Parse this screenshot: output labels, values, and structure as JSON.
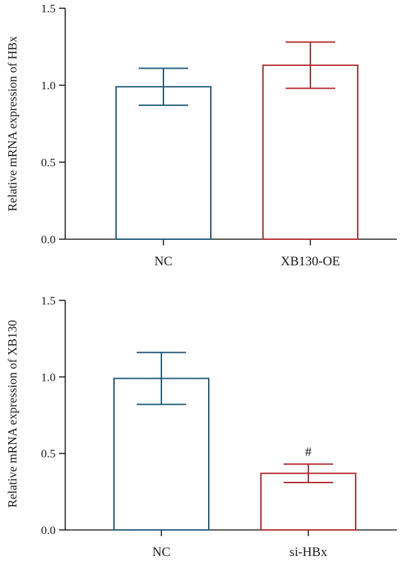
{
  "chart_data": [
    {
      "type": "bar",
      "title": "",
      "ylabel": "Relative mRNA expression of HBx",
      "xlabel": "",
      "ylim": [
        0,
        1.5
      ],
      "yticks": [
        "0.0",
        "0.5",
        "1.0",
        "1.5"
      ],
      "categories": [
        "NC",
        "XB130-OE"
      ],
      "values": [
        0.99,
        1.13
      ],
      "error": [
        0.12,
        0.15
      ],
      "colors": [
        "#1f5a78",
        "#b22a2e"
      ],
      "annotations": [
        "",
        ""
      ],
      "grid": false
    },
    {
      "type": "bar",
      "title": "",
      "ylabel": "Relative mRNA expression of XB130",
      "xlabel": "",
      "ylim": [
        0,
        1.5
      ],
      "yticks": [
        "0.0",
        "0.5",
        "1.0",
        "1.5"
      ],
      "categories": [
        "NC",
        "si-HBx"
      ],
      "values": [
        0.99,
        0.37
      ],
      "error": [
        0.17,
        0.06
      ],
      "colors": [
        "#1f5a78",
        "#b22a2e"
      ],
      "annotations": [
        "",
        "#"
      ],
      "grid": false
    }
  ]
}
